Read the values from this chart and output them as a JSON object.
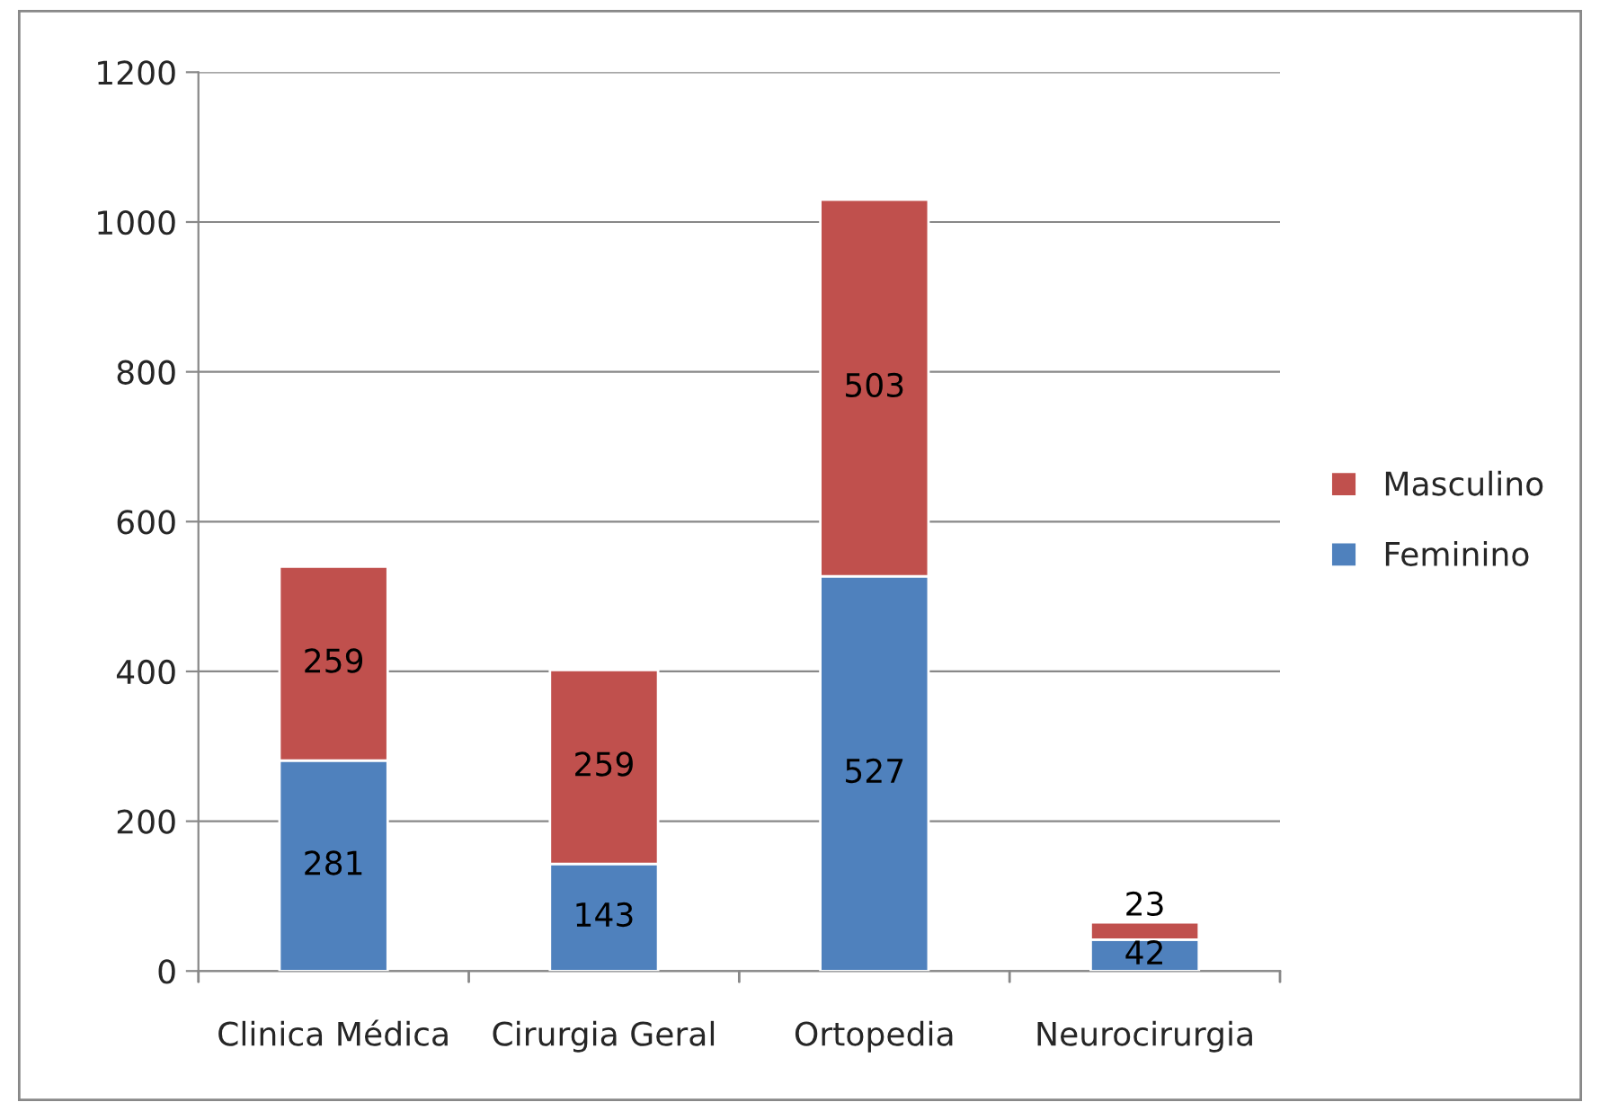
{
  "chart_data": {
    "type": "bar",
    "stacked": true,
    "categories": [
      "Clinica Médica",
      "Cirurgia Geral",
      "Ortopedia",
      "Neurocirurgia"
    ],
    "series": [
      {
        "name": "Feminino",
        "color": "#4f81bd",
        "values": [
          281,
          143,
          527,
          42
        ]
      },
      {
        "name": "Masculino",
        "color": "#c0504d",
        "values": [
          259,
          259,
          503,
          23
        ]
      }
    ],
    "ylim": [
      0,
      1200
    ],
    "yticks": [
      0,
      200,
      400,
      600,
      800,
      1000,
      1200
    ],
    "grid": "y",
    "legend": "right",
    "data_labels": true
  }
}
